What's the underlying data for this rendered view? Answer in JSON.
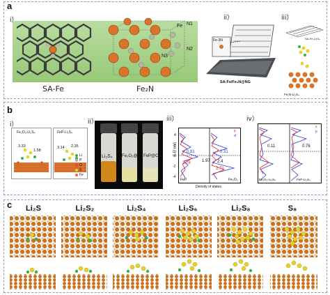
{
  "panels": {
    "a": {
      "label": "a",
      "sub_i": "i）",
      "sub_ii": "ii）",
      "sub_iii": "iii）",
      "sa_fe": "SA-Fe",
      "fe2n": "Fe₂N",
      "atoms": {
        "fe": "Fe",
        "n1": "N1",
        "n2": "N2",
        "n3": "N3"
      },
      "ii_caption": "SA-Fe/Fe₂N@NG",
      "ii_inset": "Fe-3N",
      "iii_top": "SA-Fe-Li₂S₄",
      "iii_bot": "Fe₂N-Li₂S₄"
    },
    "b": {
      "label": "b",
      "sub_i": "i）",
      "sub_ii": "ii）",
      "sub_iii": "iii）",
      "sub_iv": "iv）",
      "i_left_title": "Fe₂O₃-Li₂S₄",
      "i_right_title": "FeP-Li₂S₄",
      "i_left_vals": [
        "3.33",
        "1.58"
      ],
      "i_right_vals": [
        "3.14",
        "2.35"
      ],
      "legend": [
        "Li",
        "P",
        "O",
        "S",
        "Fe"
      ],
      "vials": [
        "Li₂S₄",
        "Fe₂O₃@C",
        "FeP@C"
      ],
      "iii": {
        "ylabel": "E-Ef (eV)",
        "xlabel": "Density of states",
        "legend_p": "p",
        "legend_d": "d",
        "values": [
          "0.81",
          "1.97",
          "2.78",
          "0.31",
          "2.4",
          "2.71"
        ],
        "bottom_left": "FeP",
        "bottom_right": "Fe₂O₃",
        "yticks": [
          "4",
          "2",
          "0",
          "-2",
          "-4"
        ]
      },
      "iv": {
        "legend_s": "s",
        "legend_p": "p",
        "values": [
          "0.11",
          "0.76"
        ],
        "bottom_left": "Fe₂O₃-Li₂S₄",
        "bottom_right": "FeP-Li₂S₄"
      }
    },
    "c": {
      "label": "c",
      "columns": [
        "Li₂S",
        "Li₂S₂",
        "Li₂S₄",
        "Li₂S₆",
        "Li₂S₈",
        "S₈"
      ]
    }
  },
  "colors": {
    "panel_border": "#8a9ab8",
    "green_bg": "#a8d48a",
    "fe_orange": "#d9742a",
    "n_gray": "#b8b6a4",
    "carbon": "#4a4a4a",
    "dos_red": "#e0242a",
    "dos_blue": "#2a3ad8"
  }
}
